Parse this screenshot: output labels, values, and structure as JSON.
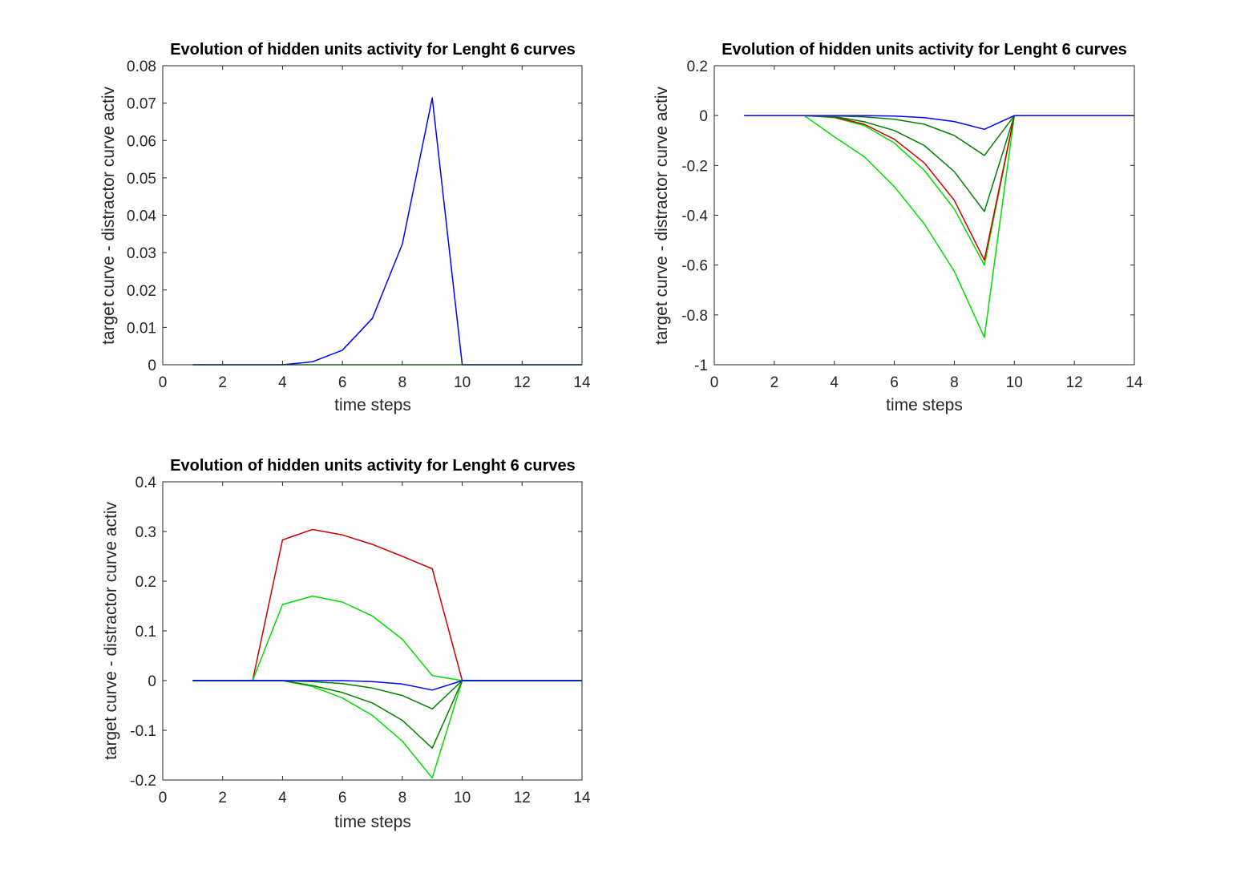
{
  "colors": {
    "blue": "#0000ff",
    "dark_green": "#008000",
    "bright_green": "#00dd00",
    "red": "#cc0000",
    "axes": "#262626",
    "background": "#ffffff"
  },
  "chart_data": [
    {
      "type": "line",
      "title": "Evolution of hidden units activity for Lenght 6 curves",
      "xlabel": "time steps",
      "ylabel": "target curve - distractor curve activ",
      "xlim": [
        0,
        14
      ],
      "ylim": [
        0,
        0.08
      ],
      "xticks": [
        0,
        2,
        4,
        6,
        8,
        10,
        12,
        14
      ],
      "yticks": [
        0,
        0.01,
        0.02,
        0.03,
        0.04,
        0.05,
        0.06,
        0.07,
        0.08
      ],
      "xtick_labels": [
        "0",
        "2",
        "4",
        "6",
        "8",
        "10",
        "12",
        "14"
      ],
      "ytick_labels": [
        "0",
        "0.01",
        "0.02",
        "0.03",
        "0.04",
        "0.05",
        "0.06",
        "0.07",
        "0.08"
      ],
      "grid": false,
      "x": [
        1,
        2,
        3,
        4,
        5,
        6,
        7,
        8,
        9,
        10,
        11,
        12,
        13,
        14
      ],
      "series": [
        {
          "color": "#00dd00",
          "values": [
            0,
            0,
            0,
            0,
            0,
            0,
            0,
            0,
            0,
            0,
            0,
            0,
            0,
            0
          ]
        },
        {
          "color": "#0000ff",
          "values": [
            0,
            0,
            0,
            0,
            0.0008,
            0.0039,
            0.0124,
            0.0323,
            0.0714,
            0,
            0,
            0,
            0,
            0
          ]
        }
      ]
    },
    {
      "type": "line",
      "title": "Evolution of hidden units activity for Lenght 6 curves",
      "xlabel": "time steps",
      "ylabel": "target curve - distractor curve activ",
      "xlim": [
        0,
        14
      ],
      "ylim": [
        -1,
        0.2
      ],
      "xticks": [
        0,
        2,
        4,
        6,
        8,
        10,
        12,
        14
      ],
      "yticks": [
        -1,
        -0.8,
        -0.6,
        -0.4,
        -0.2,
        0,
        0.2
      ],
      "xtick_labels": [
        "0",
        "2",
        "4",
        "6",
        "8",
        "10",
        "12",
        "14"
      ],
      "ytick_labels": [
        "-1",
        "-0.8",
        "-0.6",
        "-0.4",
        "-0.2",
        "0",
        "0.2"
      ],
      "grid": false,
      "x": [
        1,
        2,
        3,
        4,
        5,
        6,
        7,
        8,
        9,
        10,
        11,
        12,
        13,
        14
      ],
      "series": [
        {
          "color": "#00dd00",
          "values": [
            0,
            0,
            0,
            -0.085,
            -0.165,
            -0.285,
            -0.435,
            -0.625,
            -0.89,
            0,
            0,
            0,
            0,
            0
          ]
        },
        {
          "color": "#00dd00",
          "values": [
            0,
            0,
            0,
            -0.008,
            -0.04,
            -0.11,
            -0.22,
            -0.375,
            -0.6,
            0,
            0,
            0,
            0,
            0
          ]
        },
        {
          "color": "#cc0000",
          "values": [
            0,
            0,
            0,
            -0.006,
            -0.035,
            -0.095,
            -0.19,
            -0.34,
            -0.58,
            0,
            0,
            0,
            0,
            0
          ]
        },
        {
          "color": "#008000",
          "values": [
            0,
            0,
            0,
            -0.004,
            -0.025,
            -0.06,
            -0.12,
            -0.225,
            -0.385,
            0,
            0,
            0,
            0,
            0
          ]
        },
        {
          "color": "#008000",
          "values": [
            0,
            0,
            0,
            -0.001,
            -0.005,
            -0.015,
            -0.035,
            -0.08,
            -0.16,
            0,
            0,
            0,
            0,
            0
          ]
        },
        {
          "color": "#0000ff",
          "values": [
            0,
            0,
            0,
            0,
            0,
            -0.002,
            -0.008,
            -0.024,
            -0.055,
            0,
            0,
            0,
            0,
            0
          ]
        }
      ]
    },
    {
      "type": "line",
      "title": "Evolution of hidden units activity for Lenght 6 curves",
      "xlabel": "time steps",
      "ylabel": "target curve - distractor curve activ",
      "xlim": [
        0,
        14
      ],
      "ylim": [
        -0.2,
        0.4
      ],
      "xticks": [
        0,
        2,
        4,
        6,
        8,
        10,
        12,
        14
      ],
      "yticks": [
        -0.2,
        -0.1,
        0,
        0.1,
        0.2,
        0.3,
        0.4
      ],
      "xtick_labels": [
        "0",
        "2",
        "4",
        "6",
        "8",
        "10",
        "12",
        "14"
      ],
      "ytick_labels": [
        "-0.2",
        "-0.1",
        "0",
        "0.1",
        "0.2",
        "0.3",
        "0.4"
      ],
      "grid": false,
      "x": [
        1,
        2,
        3,
        4,
        5,
        6,
        7,
        8,
        9,
        10,
        11,
        12,
        13,
        14
      ],
      "series": [
        {
          "color": "#cc0000",
          "values": [
            0,
            0,
            0,
            0.283,
            0.304,
            0.293,
            0.274,
            0.25,
            0.225,
            0,
            0,
            0,
            0,
            0
          ]
        },
        {
          "color": "#00dd00",
          "values": [
            0,
            0,
            0,
            0.153,
            0.17,
            0.158,
            0.13,
            0.083,
            0.01,
            0,
            0,
            0,
            0,
            0
          ]
        },
        {
          "color": "#00dd00",
          "values": [
            0,
            0,
            0,
            0,
            -0.012,
            -0.035,
            -0.07,
            -0.122,
            -0.196,
            0,
            0,
            0,
            0,
            0
          ]
        },
        {
          "color": "#008000",
          "values": [
            0,
            0,
            0,
            0,
            -0.01,
            -0.024,
            -0.045,
            -0.08,
            -0.136,
            0,
            0,
            0,
            0,
            0
          ]
        },
        {
          "color": "#008000",
          "values": [
            0,
            0,
            0,
            0,
            -0.002,
            -0.006,
            -0.015,
            -0.03,
            -0.057,
            0,
            0,
            0,
            0,
            0
          ]
        },
        {
          "color": "#0000ff",
          "values": [
            0,
            0,
            0,
            0,
            0,
            0,
            -0.002,
            -0.007,
            -0.019,
            0,
            0,
            0,
            0,
            0
          ]
        }
      ]
    }
  ]
}
